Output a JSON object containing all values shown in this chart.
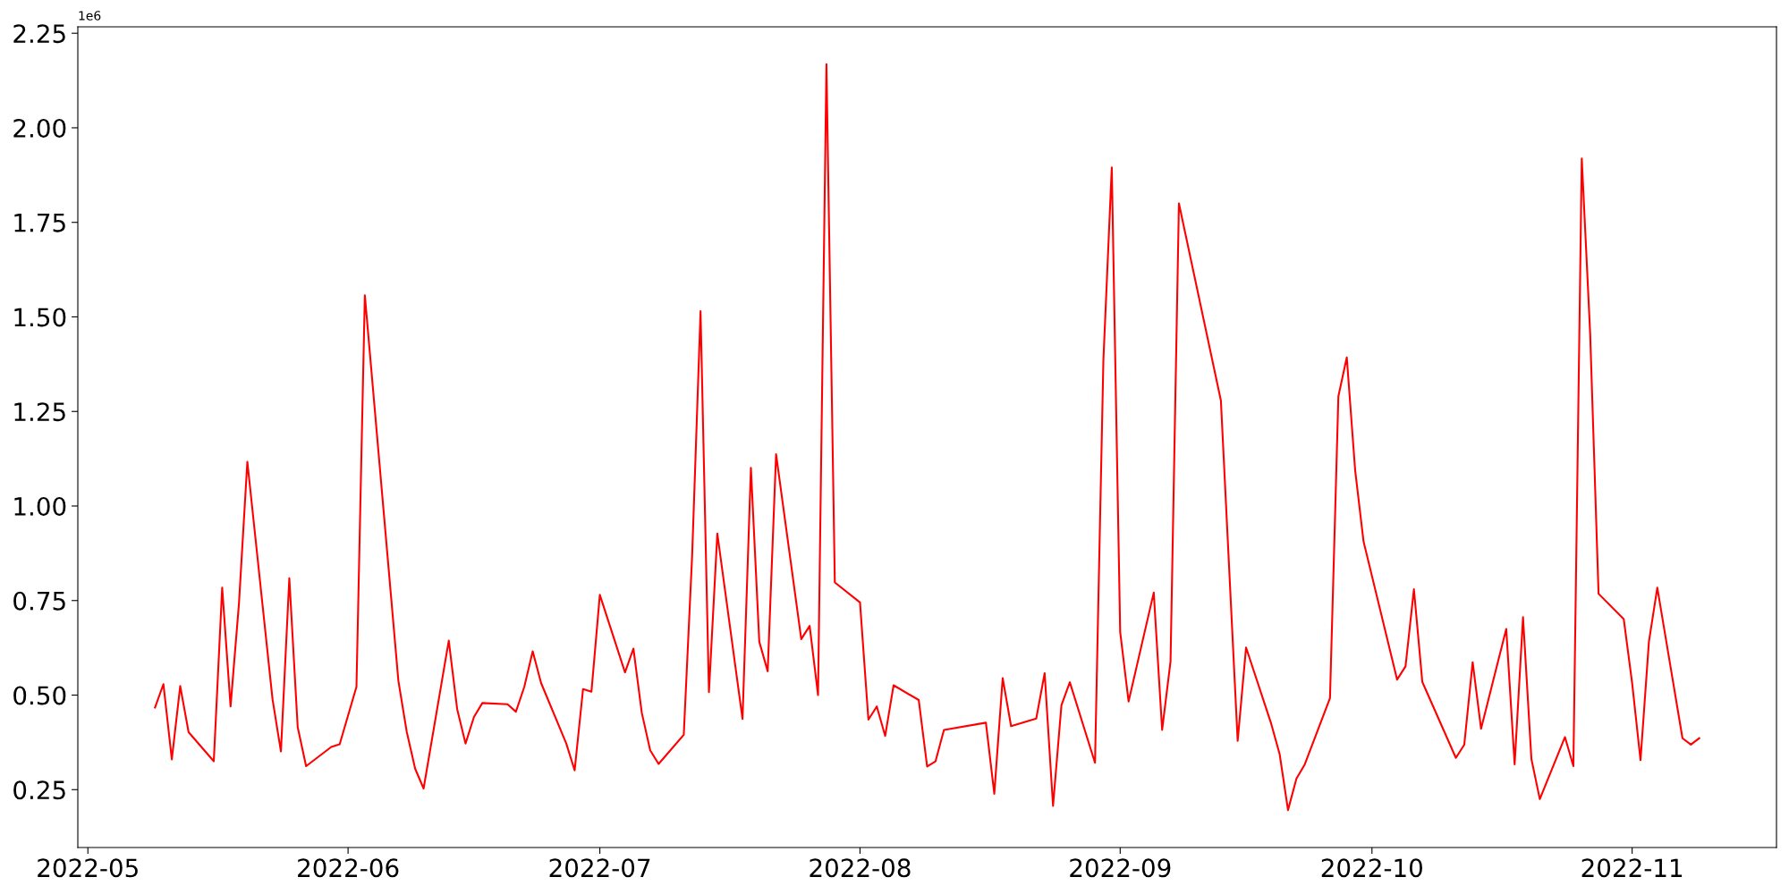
{
  "chart_data": {
    "type": "line",
    "x": [
      "2022-05-09",
      "2022-05-10",
      "2022-05-11",
      "2022-05-12",
      "2022-05-13",
      "2022-05-16",
      "2022-05-17",
      "2022-05-18",
      "2022-05-19",
      "2022-05-20",
      "2022-05-23",
      "2022-05-24",
      "2022-05-25",
      "2022-05-26",
      "2022-05-27",
      "2022-05-30",
      "2022-05-31",
      "2022-06-02",
      "2022-06-03",
      "2022-06-07",
      "2022-06-08",
      "2022-06-09",
      "2022-06-10",
      "2022-06-13",
      "2022-06-14",
      "2022-06-15",
      "2022-06-16",
      "2022-06-17",
      "2022-06-20",
      "2022-06-21",
      "2022-06-22",
      "2022-06-23",
      "2022-06-24",
      "2022-06-27",
      "2022-06-28",
      "2022-06-29",
      "2022-06-30",
      "2022-07-01",
      "2022-07-04",
      "2022-07-05",
      "2022-07-06",
      "2022-07-07",
      "2022-07-08",
      "2022-07-11",
      "2022-07-12",
      "2022-07-13",
      "2022-07-14",
      "2022-07-15",
      "2022-07-18",
      "2022-07-19",
      "2022-07-20",
      "2022-07-21",
      "2022-07-22",
      "2022-07-25",
      "2022-07-26",
      "2022-07-27",
      "2022-07-28",
      "2022-07-29",
      "2022-08-01",
      "2022-08-02",
      "2022-08-03",
      "2022-08-04",
      "2022-08-05",
      "2022-08-08",
      "2022-08-09",
      "2022-08-10",
      "2022-08-11",
      "2022-08-16",
      "2022-08-17",
      "2022-08-18",
      "2022-08-19",
      "2022-08-22",
      "2022-08-23",
      "2022-08-24",
      "2022-08-25",
      "2022-08-26",
      "2022-08-29",
      "2022-08-30",
      "2022-08-31",
      "2022-09-01",
      "2022-09-02",
      "2022-09-05",
      "2022-09-06",
      "2022-09-07",
      "2022-09-08",
      "2022-09-13",
      "2022-09-15",
      "2022-09-16",
      "2022-09-19",
      "2022-09-20",
      "2022-09-21",
      "2022-09-22",
      "2022-09-23",
      "2022-09-26",
      "2022-09-27",
      "2022-09-28",
      "2022-09-29",
      "2022-09-30",
      "2022-10-04",
      "2022-10-05",
      "2022-10-06",
      "2022-10-07",
      "2022-10-11",
      "2022-10-12",
      "2022-10-13",
      "2022-10-14",
      "2022-10-17",
      "2022-10-18",
      "2022-10-19",
      "2022-10-20",
      "2022-10-21",
      "2022-10-24",
      "2022-10-25",
      "2022-10-26",
      "2022-10-27",
      "2022-10-28",
      "2022-10-31",
      "2022-11-01",
      "2022-11-02",
      "2022-11-03",
      "2022-11-04",
      "2022-11-07",
      "2022-11-08",
      "2022-11-09"
    ],
    "series": [
      {
        "color": "#ff0000",
        "values": [
          0.467,
          0.529,
          0.33,
          0.524,
          0.402,
          0.325,
          0.784,
          0.47,
          0.742,
          1.117,
          0.489,
          0.351,
          0.809,
          0.415,
          0.312,
          0.363,
          0.37,
          0.522,
          1.557,
          0.537,
          0.402,
          0.305,
          0.253,
          0.644,
          0.463,
          0.372,
          0.442,
          0.479,
          0.476,
          0.456,
          0.522,
          0.616,
          0.532,
          0.372,
          0.301,
          0.516,
          0.509,
          0.765,
          0.56,
          0.623,
          0.453,
          0.354,
          0.318,
          0.395,
          0.87,
          1.515,
          0.508,
          0.927,
          0.437,
          1.101,
          0.641,
          0.563,
          1.137,
          0.648,
          0.683,
          0.5,
          2.168,
          0.798,
          0.745,
          0.435,
          0.47,
          0.392,
          0.526,
          0.487,
          0.311,
          0.325,
          0.408,
          0.427,
          0.239,
          0.545,
          0.418,
          0.438,
          0.558,
          0.207,
          0.473,
          0.534,
          0.321,
          1.386,
          1.895,
          0.667,
          0.483,
          0.771,
          0.408,
          0.589,
          1.8,
          1.279,
          0.379,
          0.626,
          0.424,
          0.344,
          0.196,
          0.279,
          0.317,
          0.492,
          1.29,
          1.393,
          1.094,
          0.906,
          0.541,
          0.576,
          0.78,
          0.535,
          0.334,
          0.369,
          0.587,
          0.411,
          0.675,
          0.317,
          0.706,
          0.331,
          0.225,
          0.389,
          0.312,
          1.919,
          1.456,
          0.768,
          0.701,
          0.532,
          0.328,
          0.641,
          0.784,
          0.386,
          0.369,
          0.386
        ]
      }
    ],
    "xlim": [
      "2022-04-29T19:12",
      "2022-11-18T04:48"
    ],
    "xticks": [
      "2022-05",
      "2022-06",
      "2022-07",
      "2022-08",
      "2022-09",
      "2022-10",
      "2022-11"
    ],
    "ylim": [
      0.097,
      2.267
    ],
    "yticks": [
      0.25,
      {
        "value": 0.5,
        "label": "0.50"
      },
      0.75,
      {
        "value": 1.0,
        "label": "1.00"
      },
      1.25,
      {
        "value": 1.5,
        "label": "1.50"
      },
      1.75,
      {
        "value": 2.0,
        "label": "2.00"
      },
      2.25
    ],
    "annotations": [
      "1e6"
    ],
    "marker": "none",
    "line_style": "solid"
  }
}
